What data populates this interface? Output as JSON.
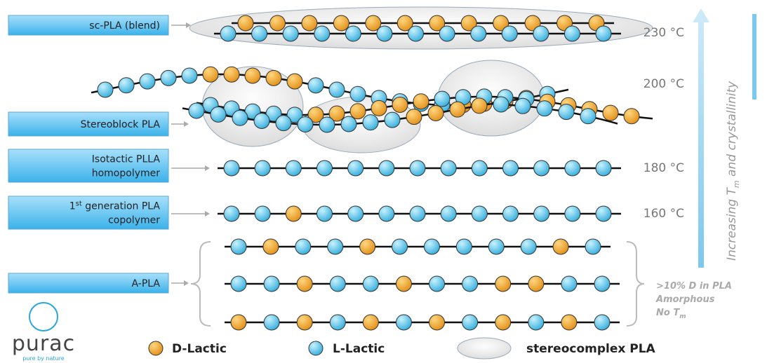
{
  "labels": [
    {
      "lines": [
        "sc-PLA (blend)"
      ]
    },
    {
      "lines": [
        "Stereoblock PLA"
      ]
    },
    {
      "lines": [
        "Isotactic PLLA",
        "homopolymer"
      ]
    },
    {
      "lines": [
        "1",
        "st",
        " generation PLA",
        "copolymer"
      ]
    },
    {
      "lines": [
        "A-PLA"
      ]
    }
  ],
  "temperatures": [
    "230 °C",
    "200 °C",
    "180 °C",
    "160 °C"
  ],
  "amorphous_note": [
    ">10% D in PLA",
    "Amorphous",
    "No T",
    "m"
  ],
  "axis_label": [
    "Increasing T",
    "m",
    " and crystallinity"
  ],
  "legend": [
    "D-Lactic",
    "L-Lactic",
    "stereocomplex PLA"
  ],
  "logo": {
    "name": "purac",
    "tagline": "pure by nature"
  }
}
